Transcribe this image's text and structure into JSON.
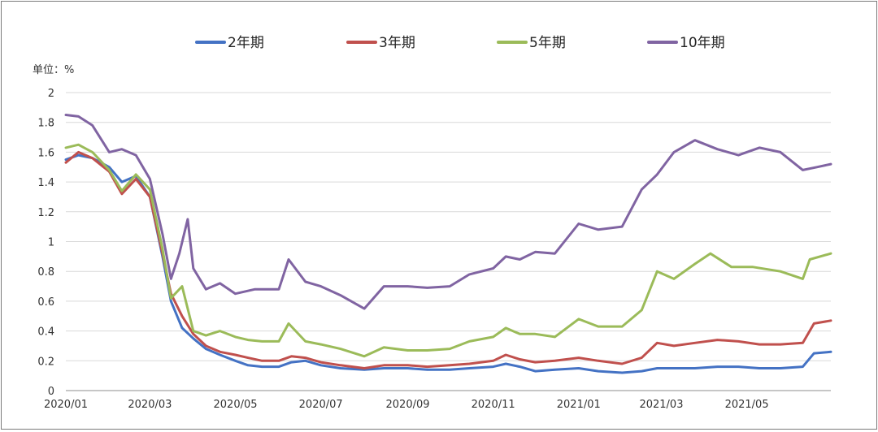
{
  "chart_data": {
    "type": "line",
    "unit_label": "单位：%",
    "ylim": [
      0,
      2
    ],
    "y_ticks": [
      "0",
      "0.2",
      "0.4",
      "0.6",
      "0.8",
      "1",
      "1.2",
      "1.4",
      "1.6",
      "1.8",
      "2"
    ],
    "x_ticks": [
      {
        "label": "2020/01",
        "date": "2020-01-01"
      },
      {
        "label": "2020/03",
        "date": "2020-03-01"
      },
      {
        "label": "2020/05",
        "date": "2020-05-01"
      },
      {
        "label": "2020/07",
        "date": "2020-07-01"
      },
      {
        "label": "2020/09",
        "date": "2020-09-01"
      },
      {
        "label": "2020/11",
        "date": "2020-11-01"
      },
      {
        "label": "2021/01",
        "date": "2021-01-01"
      },
      {
        "label": "2021/03",
        "date": "2021-03-01"
      },
      {
        "label": "2021/05",
        "date": "2021-05-01"
      }
    ],
    "x_range": [
      "2020-01-01",
      "2021-06-30"
    ],
    "grid": true,
    "legend_position": "top",
    "series": [
      {
        "name": "2年期",
        "color": "#4472C4",
        "points": [
          [
            "2020-01-01",
            1.55
          ],
          [
            "2020-01-10",
            1.58
          ],
          [
            "2020-01-20",
            1.56
          ],
          [
            "2020-02-01",
            1.5
          ],
          [
            "2020-02-10",
            1.4
          ],
          [
            "2020-02-20",
            1.44
          ],
          [
            "2020-03-01",
            1.3
          ],
          [
            "2020-03-10",
            0.9
          ],
          [
            "2020-03-16",
            0.6
          ],
          [
            "2020-03-24",
            0.42
          ],
          [
            "2020-04-01",
            0.35
          ],
          [
            "2020-04-10",
            0.28
          ],
          [
            "2020-04-20",
            0.24
          ],
          [
            "2020-05-01",
            0.2
          ],
          [
            "2020-05-10",
            0.17
          ],
          [
            "2020-05-20",
            0.16
          ],
          [
            "2020-06-01",
            0.16
          ],
          [
            "2020-06-10",
            0.19
          ],
          [
            "2020-06-20",
            0.2
          ],
          [
            "2020-07-01",
            0.17
          ],
          [
            "2020-07-15",
            0.15
          ],
          [
            "2020-08-01",
            0.14
          ],
          [
            "2020-08-15",
            0.15
          ],
          [
            "2020-09-01",
            0.15
          ],
          [
            "2020-09-15",
            0.14
          ],
          [
            "2020-10-01",
            0.14
          ],
          [
            "2020-10-15",
            0.15
          ],
          [
            "2020-11-01",
            0.16
          ],
          [
            "2020-11-10",
            0.18
          ],
          [
            "2020-11-20",
            0.16
          ],
          [
            "2020-12-01",
            0.13
          ],
          [
            "2020-12-15",
            0.14
          ],
          [
            "2021-01-01",
            0.15
          ],
          [
            "2021-01-15",
            0.13
          ],
          [
            "2021-02-01",
            0.12
          ],
          [
            "2021-02-15",
            0.13
          ],
          [
            "2021-02-26",
            0.15
          ],
          [
            "2021-03-10",
            0.15
          ],
          [
            "2021-03-25",
            0.15
          ],
          [
            "2021-04-10",
            0.16
          ],
          [
            "2021-04-25",
            0.16
          ],
          [
            "2021-05-10",
            0.15
          ],
          [
            "2021-05-25",
            0.15
          ],
          [
            "2021-06-10",
            0.16
          ],
          [
            "2021-06-18",
            0.25
          ],
          [
            "2021-06-30",
            0.26
          ]
        ]
      },
      {
        "name": "3年期",
        "color": "#C0504D",
        "points": [
          [
            "2020-01-01",
            1.53
          ],
          [
            "2020-01-10",
            1.6
          ],
          [
            "2020-01-20",
            1.56
          ],
          [
            "2020-02-01",
            1.47
          ],
          [
            "2020-02-10",
            1.32
          ],
          [
            "2020-02-20",
            1.42
          ],
          [
            "2020-03-01",
            1.3
          ],
          [
            "2020-03-10",
            0.92
          ],
          [
            "2020-03-16",
            0.65
          ],
          [
            "2020-03-24",
            0.5
          ],
          [
            "2020-04-01",
            0.38
          ],
          [
            "2020-04-10",
            0.3
          ],
          [
            "2020-04-20",
            0.26
          ],
          [
            "2020-05-01",
            0.24
          ],
          [
            "2020-05-10",
            0.22
          ],
          [
            "2020-05-20",
            0.2
          ],
          [
            "2020-06-01",
            0.2
          ],
          [
            "2020-06-10",
            0.23
          ],
          [
            "2020-06-20",
            0.22
          ],
          [
            "2020-07-01",
            0.19
          ],
          [
            "2020-07-15",
            0.17
          ],
          [
            "2020-08-01",
            0.15
          ],
          [
            "2020-08-15",
            0.17
          ],
          [
            "2020-09-01",
            0.17
          ],
          [
            "2020-09-15",
            0.16
          ],
          [
            "2020-10-01",
            0.17
          ],
          [
            "2020-10-15",
            0.18
          ],
          [
            "2020-11-01",
            0.2
          ],
          [
            "2020-11-10",
            0.24
          ],
          [
            "2020-11-20",
            0.21
          ],
          [
            "2020-12-01",
            0.19
          ],
          [
            "2020-12-15",
            0.2
          ],
          [
            "2021-01-01",
            0.22
          ],
          [
            "2021-01-15",
            0.2
          ],
          [
            "2021-02-01",
            0.18
          ],
          [
            "2021-02-15",
            0.22
          ],
          [
            "2021-02-26",
            0.32
          ],
          [
            "2021-03-10",
            0.3
          ],
          [
            "2021-03-25",
            0.32
          ],
          [
            "2021-04-10",
            0.34
          ],
          [
            "2021-04-25",
            0.33
          ],
          [
            "2021-05-10",
            0.31
          ],
          [
            "2021-05-25",
            0.31
          ],
          [
            "2021-06-10",
            0.32
          ],
          [
            "2021-06-18",
            0.45
          ],
          [
            "2021-06-30",
            0.47
          ]
        ]
      },
      {
        "name": "5年期",
        "color": "#9BBB59",
        "points": [
          [
            "2020-01-01",
            1.63
          ],
          [
            "2020-01-10",
            1.65
          ],
          [
            "2020-01-20",
            1.6
          ],
          [
            "2020-02-01",
            1.48
          ],
          [
            "2020-02-10",
            1.34
          ],
          [
            "2020-02-20",
            1.45
          ],
          [
            "2020-03-01",
            1.35
          ],
          [
            "2020-03-10",
            0.95
          ],
          [
            "2020-03-16",
            0.62
          ],
          [
            "2020-03-24",
            0.7
          ],
          [
            "2020-04-01",
            0.4
          ],
          [
            "2020-04-10",
            0.37
          ],
          [
            "2020-04-20",
            0.4
          ],
          [
            "2020-05-01",
            0.36
          ],
          [
            "2020-05-10",
            0.34
          ],
          [
            "2020-05-20",
            0.33
          ],
          [
            "2020-06-01",
            0.33
          ],
          [
            "2020-06-08",
            0.45
          ],
          [
            "2020-06-20",
            0.33
          ],
          [
            "2020-07-01",
            0.31
          ],
          [
            "2020-07-15",
            0.28
          ],
          [
            "2020-08-01",
            0.23
          ],
          [
            "2020-08-15",
            0.29
          ],
          [
            "2020-09-01",
            0.27
          ],
          [
            "2020-09-15",
            0.27
          ],
          [
            "2020-10-01",
            0.28
          ],
          [
            "2020-10-15",
            0.33
          ],
          [
            "2020-11-01",
            0.36
          ],
          [
            "2020-11-10",
            0.42
          ],
          [
            "2020-11-20",
            0.38
          ],
          [
            "2020-12-01",
            0.38
          ],
          [
            "2020-12-15",
            0.36
          ],
          [
            "2021-01-01",
            0.48
          ],
          [
            "2021-01-15",
            0.43
          ],
          [
            "2021-02-01",
            0.43
          ],
          [
            "2021-02-15",
            0.54
          ],
          [
            "2021-02-26",
            0.8
          ],
          [
            "2021-03-10",
            0.75
          ],
          [
            "2021-03-25",
            0.85
          ],
          [
            "2021-04-05",
            0.92
          ],
          [
            "2021-04-20",
            0.83
          ],
          [
            "2021-05-05",
            0.83
          ],
          [
            "2021-05-25",
            0.8
          ],
          [
            "2021-06-10",
            0.75
          ],
          [
            "2021-06-15",
            0.88
          ],
          [
            "2021-06-30",
            0.92
          ]
        ]
      },
      {
        "name": "10年期",
        "color": "#8064A2",
        "points": [
          [
            "2020-01-01",
            1.85
          ],
          [
            "2020-01-10",
            1.84
          ],
          [
            "2020-01-20",
            1.78
          ],
          [
            "2020-02-01",
            1.6
          ],
          [
            "2020-02-10",
            1.62
          ],
          [
            "2020-02-20",
            1.58
          ],
          [
            "2020-03-01",
            1.42
          ],
          [
            "2020-03-10",
            1.05
          ],
          [
            "2020-03-16",
            0.75
          ],
          [
            "2020-03-22",
            0.92
          ],
          [
            "2020-03-28",
            1.15
          ],
          [
            "2020-04-01",
            0.82
          ],
          [
            "2020-04-10",
            0.68
          ],
          [
            "2020-04-20",
            0.72
          ],
          [
            "2020-05-01",
            0.65
          ],
          [
            "2020-05-15",
            0.68
          ],
          [
            "2020-06-01",
            0.68
          ],
          [
            "2020-06-08",
            0.88
          ],
          [
            "2020-06-20",
            0.73
          ],
          [
            "2020-07-01",
            0.7
          ],
          [
            "2020-07-15",
            0.64
          ],
          [
            "2020-08-01",
            0.55
          ],
          [
            "2020-08-15",
            0.7
          ],
          [
            "2020-09-01",
            0.7
          ],
          [
            "2020-09-15",
            0.69
          ],
          [
            "2020-10-01",
            0.7
          ],
          [
            "2020-10-15",
            0.78
          ],
          [
            "2020-11-01",
            0.82
          ],
          [
            "2020-11-10",
            0.9
          ],
          [
            "2020-11-20",
            0.88
          ],
          [
            "2020-12-01",
            0.93
          ],
          [
            "2020-12-15",
            0.92
          ],
          [
            "2021-01-01",
            1.12
          ],
          [
            "2021-01-15",
            1.08
          ],
          [
            "2021-02-01",
            1.1
          ],
          [
            "2021-02-15",
            1.35
          ],
          [
            "2021-02-26",
            1.45
          ],
          [
            "2021-03-10",
            1.6
          ],
          [
            "2021-03-25",
            1.68
          ],
          [
            "2021-04-10",
            1.62
          ],
          [
            "2021-04-25",
            1.58
          ],
          [
            "2021-05-10",
            1.63
          ],
          [
            "2021-05-25",
            1.6
          ],
          [
            "2021-06-10",
            1.48
          ],
          [
            "2021-06-20",
            1.5
          ],
          [
            "2021-06-30",
            1.52
          ]
        ]
      }
    ]
  }
}
